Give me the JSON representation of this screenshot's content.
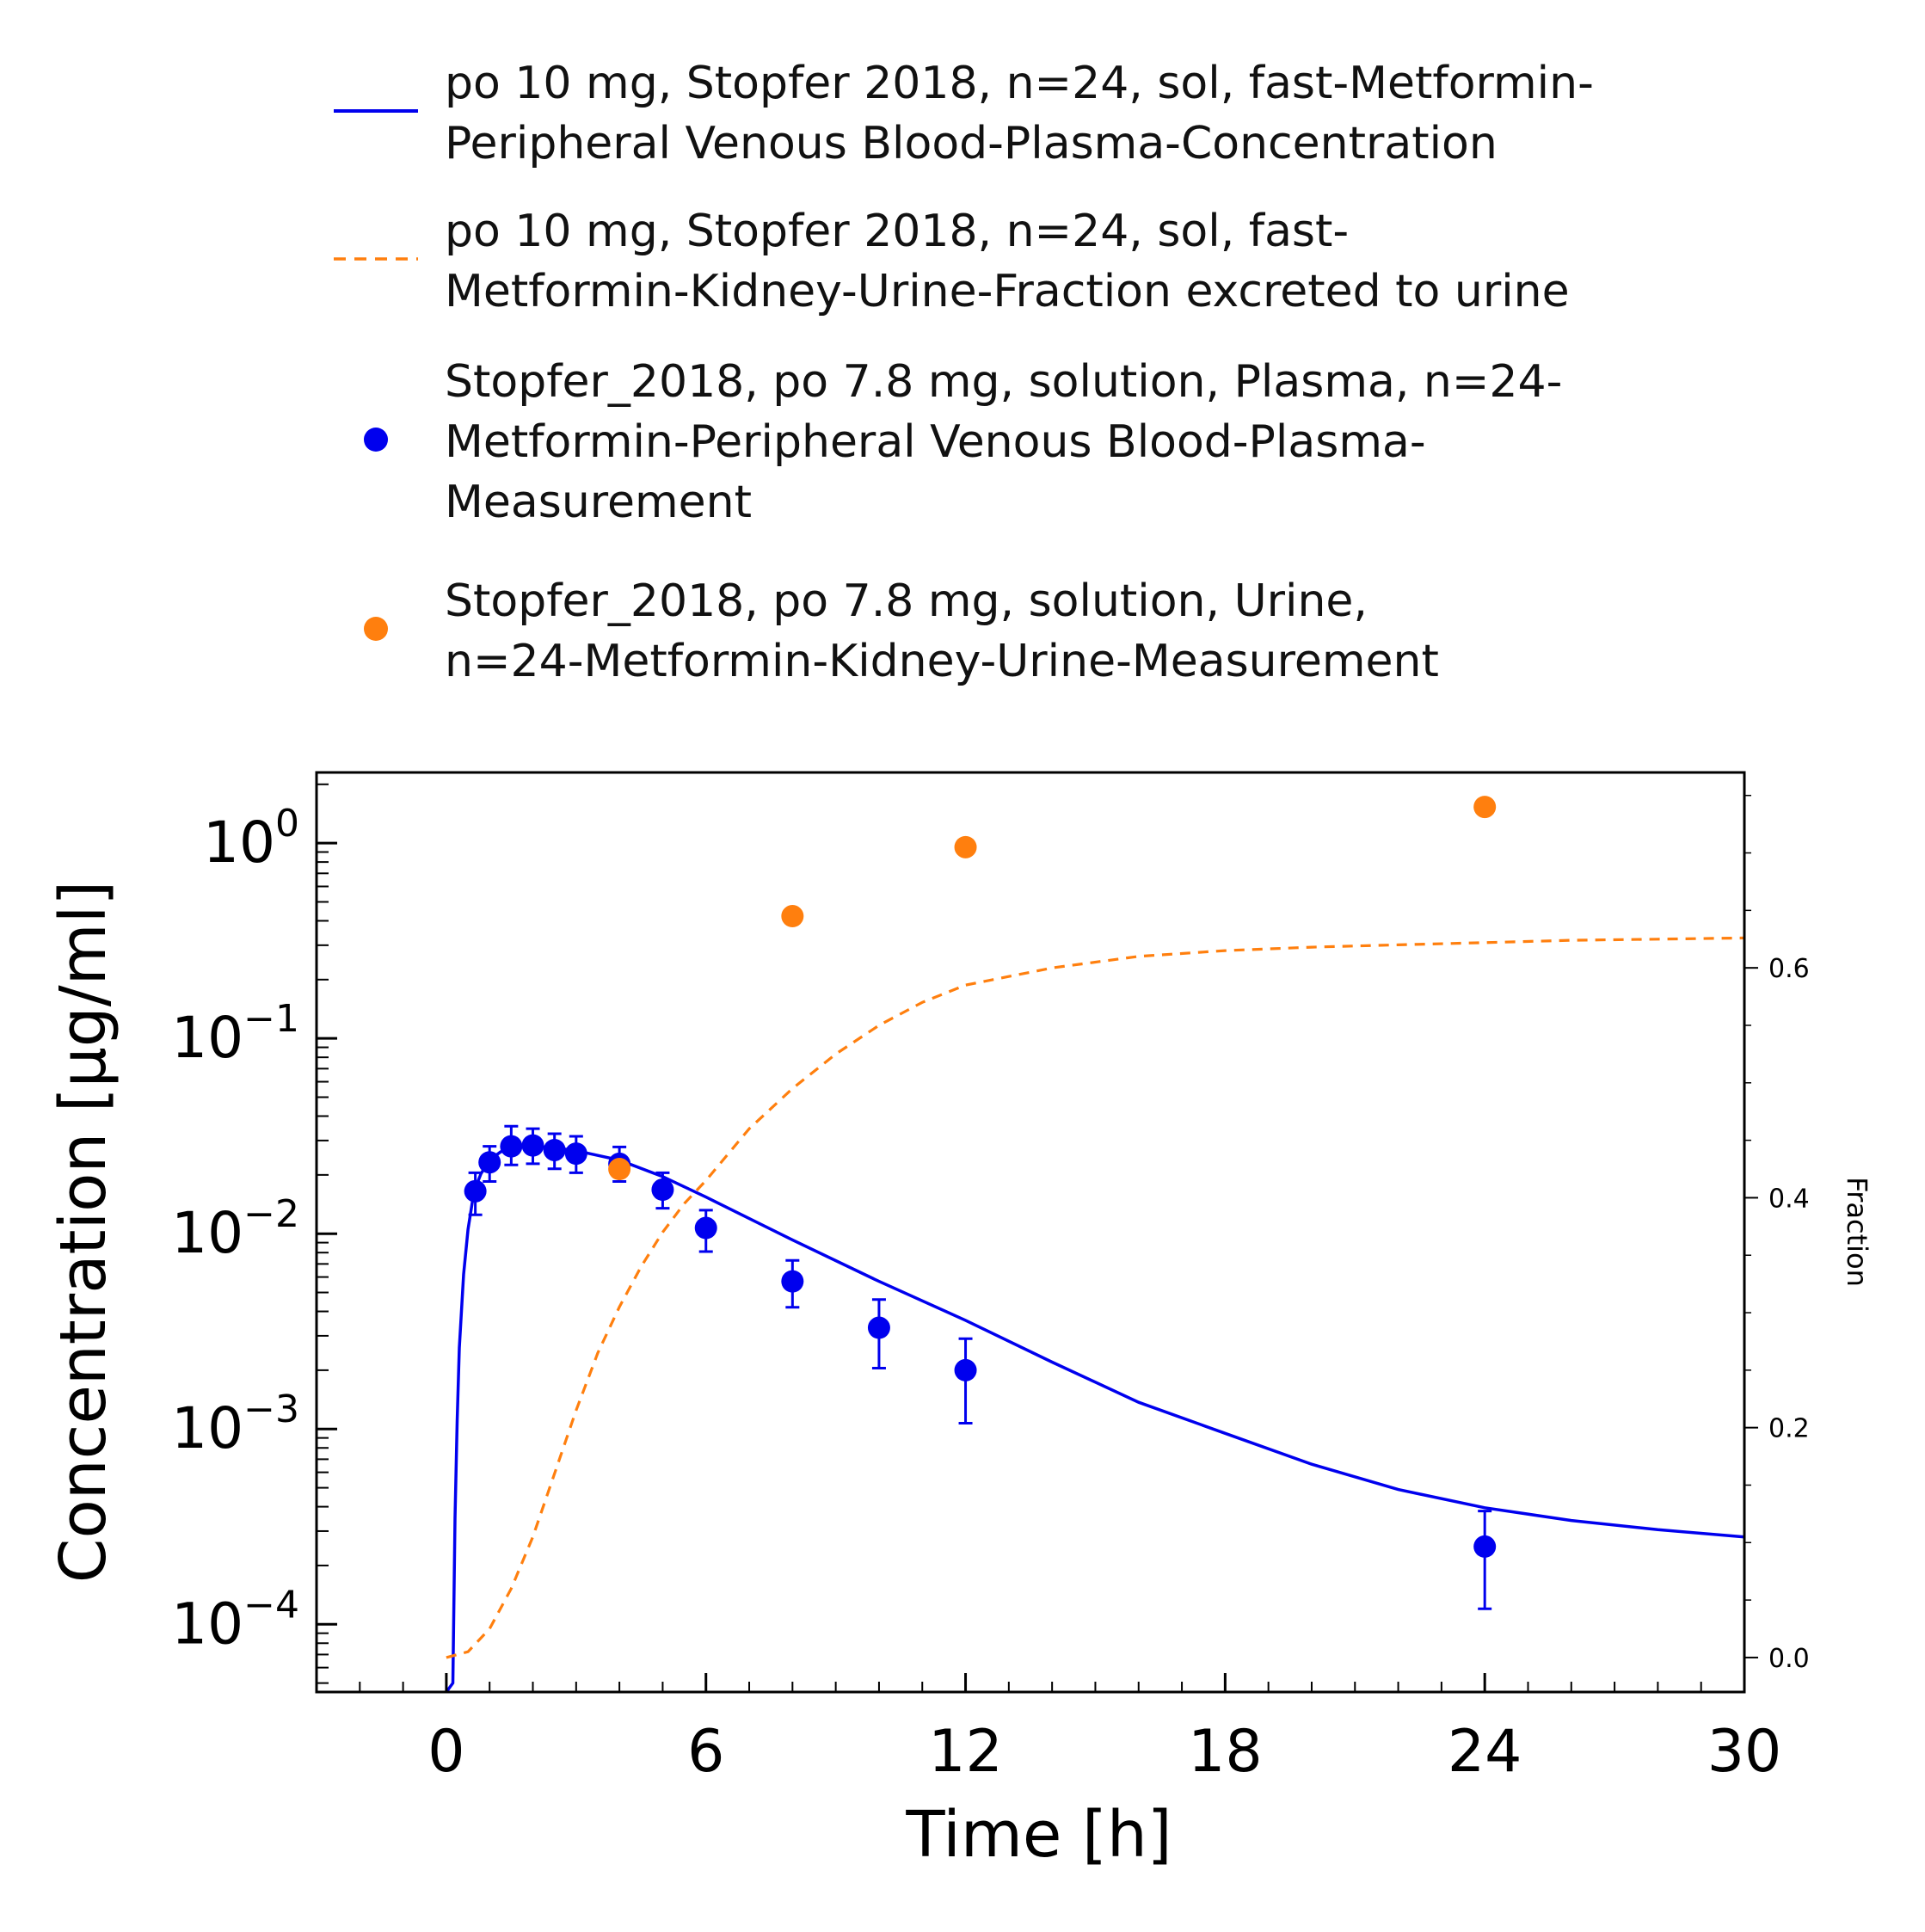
{
  "chart_data": {
    "type": "line",
    "xlabel": "Time [h]",
    "ylabel": "Concentration [µg/ml]",
    "y2label": "Fraction",
    "xlim": [
      -3,
      30
    ],
    "ylim": [
      4.5e-05,
      2.3
    ],
    "yscale": "log",
    "y2lim": [
      -0.03,
      0.77
    ],
    "x_ticks": [
      0,
      6,
      12,
      18,
      24,
      30
    ],
    "y_ticks": [
      {
        "base": "10",
        "exp": "0",
        "value": 1
      },
      {
        "base": "10",
        "exp": "−1",
        "value": 0.1
      },
      {
        "base": "10",
        "exp": "−2",
        "value": 0.01
      },
      {
        "base": "10",
        "exp": "−3",
        "value": 0.001
      },
      {
        "base": "10",
        "exp": "−4",
        "value": 0.0001
      }
    ],
    "y2_ticks": [
      "0.0",
      "0.2",
      "0.4",
      "0.6"
    ],
    "legend_position": "top",
    "series": [
      {
        "name_lines": [
          "po 10 mg, Stopfer 2018, n=24, sol, fast-Metformin-",
          "Peripheral Venous Blood-Plasma-Concentration"
        ],
        "kind": "line",
        "axis": "left",
        "color": "#0000ee",
        "x": [
          0.0,
          0.15,
          0.2,
          0.25,
          0.3,
          0.4,
          0.5,
          0.6,
          0.7,
          0.8,
          1.0,
          1.25,
          1.5,
          2.0,
          2.5,
          3.0,
          4.0,
          5.0,
          6.0,
          8.0,
          10.0,
          12.0,
          14.0,
          16.0,
          18.0,
          20.0,
          22.0,
          24.0,
          26.0,
          28.0,
          30.0
        ],
        "y": [
          2e-05,
          5e-05,
          0.00035,
          0.0011,
          0.0026,
          0.0062,
          0.0105,
          0.0145,
          0.0178,
          0.0203,
          0.0238,
          0.0262,
          0.0275,
          0.028,
          0.0276,
          0.0266,
          0.0238,
          0.0196,
          0.0154,
          0.0093,
          0.0057,
          0.0036,
          0.0022,
          0.00137,
          0.00095,
          0.00066,
          0.00049,
          0.000395,
          0.00034,
          0.000305,
          0.00028
        ]
      },
      {
        "name_lines": [
          "po 10 mg, Stopfer 2018, n=24, sol, fast-",
          "Metformin-Kidney-Urine-Fraction excreted to urine"
        ],
        "kind": "dashed-line",
        "axis": "right",
        "color": "#ff7f0e",
        "x": [
          0.0,
          0.5,
          1.0,
          1.5,
          2.0,
          2.5,
          3.0,
          3.5,
          4.0,
          4.5,
          5.0,
          5.5,
          6.0,
          7.0,
          8.0,
          9.0,
          10.0,
          11.0,
          12.0,
          14.0,
          16.0,
          18.0,
          20.0,
          22.0,
          24.0,
          26.0,
          28.0,
          30.0
        ],
        "y": [
          0.0,
          0.005,
          0.025,
          0.06,
          0.105,
          0.16,
          0.215,
          0.265,
          0.305,
          0.34,
          0.37,
          0.395,
          0.415,
          0.46,
          0.495,
          0.525,
          0.55,
          0.57,
          0.585,
          0.6,
          0.61,
          0.615,
          0.618,
          0.62,
          0.622,
          0.624,
          0.625,
          0.626
        ]
      },
      {
        "name_lines": [
          "Stopfer_2018, po 7.8 mg, solution, Plasma, n=24-",
          "Metformin-Peripheral Venous Blood-Plasma-",
          "Measurement"
        ],
        "kind": "markers-errorbars",
        "axis": "left",
        "color": "#0000ee",
        "x": [
          0.67,
          1.0,
          1.5,
          2.0,
          2.5,
          3.0,
          4.0,
          5.0,
          6.0,
          8.0,
          10.0,
          12.0,
          24.0
        ],
        "y": [
          0.0165,
          0.0232,
          0.028,
          0.0283,
          0.0268,
          0.0257,
          0.0228,
          0.0168,
          0.0107,
          0.0057,
          0.0033,
          0.002,
          0.00025
        ],
        "y_low": [
          0.0125,
          0.0185,
          0.0225,
          0.0228,
          0.0215,
          0.0205,
          0.0185,
          0.0135,
          0.0081,
          0.0042,
          0.00205,
          0.00107,
          0.00012
        ],
        "y_high": [
          0.0205,
          0.028,
          0.0355,
          0.0345,
          0.0325,
          0.0315,
          0.0278,
          0.0205,
          0.0132,
          0.0073,
          0.0046,
          0.0029,
          0.00038
        ]
      },
      {
        "name_lines": [
          "Stopfer_2018, po 7.8 mg, solution, Urine,",
          "n=24-Metformin-Kidney-Urine-Measurement"
        ],
        "kind": "markers",
        "axis": "right",
        "color": "#ff7f0e",
        "x": [
          4.0,
          8.0,
          12.0,
          24.0
        ],
        "y": [
          0.425,
          0.645,
          0.705,
          0.74
        ]
      }
    ]
  }
}
